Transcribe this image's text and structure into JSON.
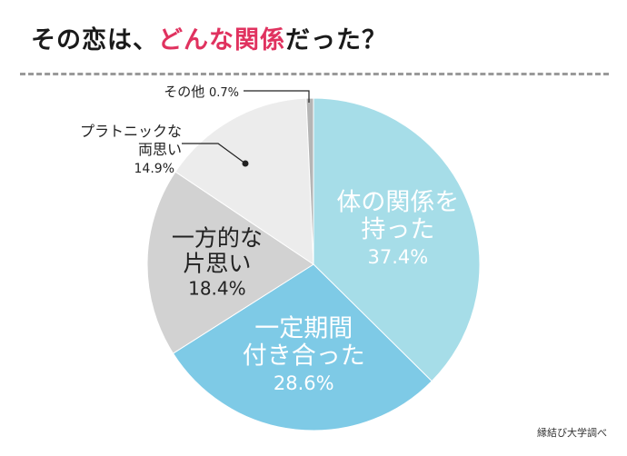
{
  "header": {
    "title_prefix": "その恋は、",
    "title_highlight": "どんな関係",
    "title_suffix": "だった？"
  },
  "source": "縁結び大学調べ",
  "chart_data": {
    "type": "pie",
    "title": "その恋は、どんな関係だった？",
    "slices": [
      {
        "label_lines": [
          "体の関係を",
          "持った"
        ],
        "value": 37.4,
        "value_text": "37.4%",
        "color": "#a6dde8",
        "label_color": "#ffffff"
      },
      {
        "label_lines": [
          "一定期間",
          "付き合った"
        ],
        "value": 28.6,
        "value_text": "28.6%",
        "color": "#7ecae6",
        "label_color": "#ffffff"
      },
      {
        "label_lines": [
          "一方的な",
          "片思い"
        ],
        "value": 18.4,
        "value_text": "18.4%",
        "color": "#d2d2d2",
        "label_color": "#222222"
      },
      {
        "label_lines": [
          "プラトニックな",
          "両思い"
        ],
        "value": 14.9,
        "value_text": "14.9%",
        "color": "#ececec",
        "label_color": "#222222"
      },
      {
        "label_lines": [
          "その他"
        ],
        "value": 0.7,
        "value_text": "0.7%",
        "color": "#b5b5b5",
        "label_color": "#222222"
      }
    ]
  }
}
